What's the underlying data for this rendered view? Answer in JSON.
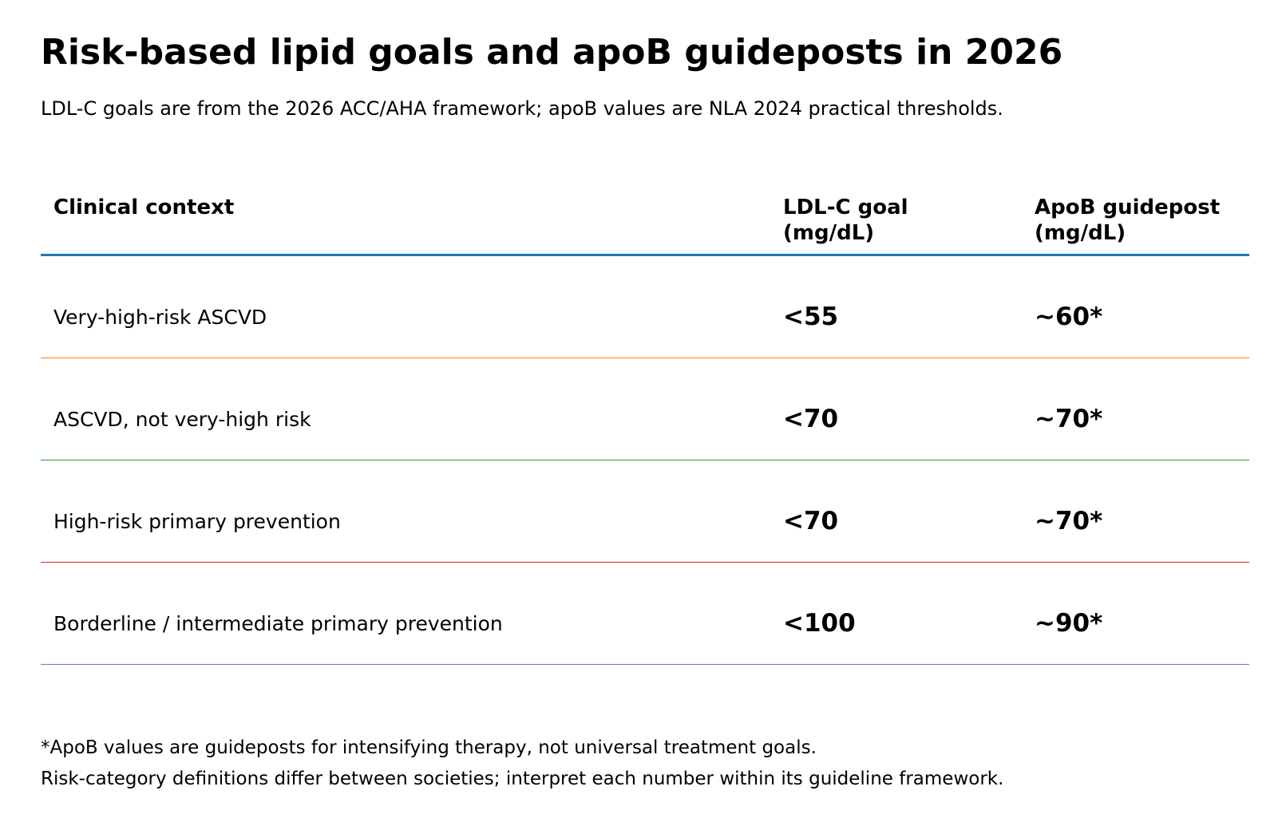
{
  "chart_data": {
    "type": "table",
    "title": "Risk-based lipid goals and apoB guideposts in 2026",
    "subtitle": "LDL-C goals are from the 2026 ACC/AHA framework; apoB values are NLA 2024 practical thresholds.",
    "columns": [
      "Clinical context",
      "LDL-C goal (mg/dL)",
      "ApoB guidepost (mg/dL)"
    ],
    "rows": [
      {
        "context": "Very-high-risk ASCVD",
        "ldl_goal": "<55",
        "apob": "~60*",
        "color": "#ff7f0e"
      },
      {
        "context": "ASCVD, not very-high risk",
        "ldl_goal": "<70",
        "apob": "~70*",
        "color": "#2ca02c"
      },
      {
        "context": "High-risk primary prevention",
        "ldl_goal": "<70",
        "apob": "~70*",
        "color": "#d62728"
      },
      {
        "context": "Borderline / intermediate primary prevention",
        "ldl_goal": "<100",
        "apob": "~90*",
        "color": "#9467bd"
      }
    ],
    "header_rule_color": "#1f77b4",
    "footnotes": [
      "*ApoB values are guideposts for intensifying therapy, not universal treatment goals.",
      "Risk-category definitions differ between societies; interpret each number within its guideline framework."
    ]
  }
}
